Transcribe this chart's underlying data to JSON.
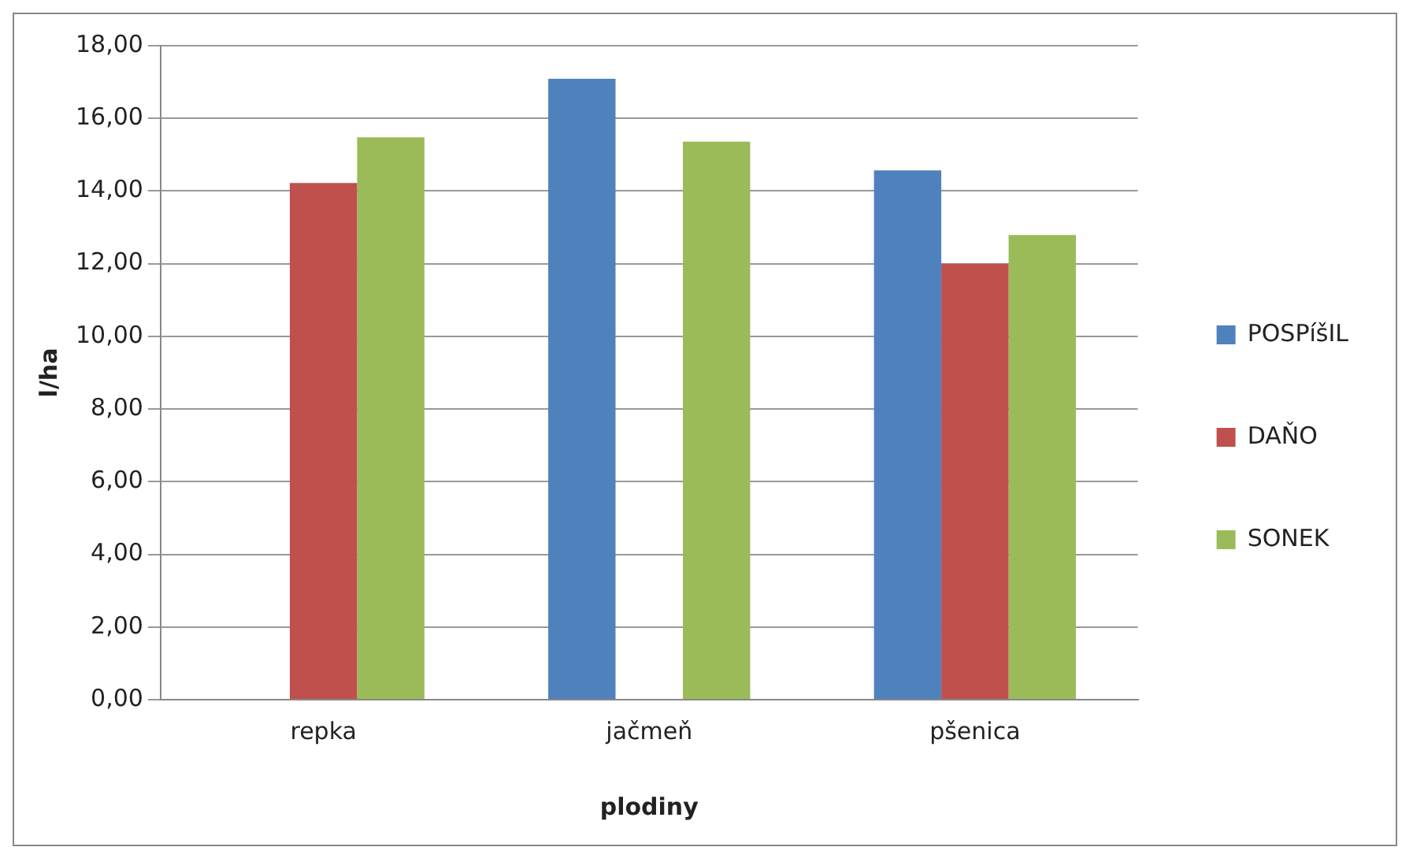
{
  "chart_data": {
    "type": "bar",
    "xlabel": "plodiny",
    "ylabel": "l/ha",
    "categories": [
      "repka",
      "jačmeň",
      "pšenica"
    ],
    "series": [
      {
        "name": "POSPíšIL",
        "color": "#4f81bd",
        "values": [
          null,
          17.09,
          14.57
        ]
      },
      {
        "name": "DAŇO",
        "color": "#c0504d",
        "values": [
          14.22,
          null,
          12.0
        ]
      },
      {
        "name": "SONEK",
        "color": "#9bbb59",
        "values": [
          15.48,
          15.36,
          12.79
        ]
      }
    ],
    "ylim": [
      0,
      18
    ],
    "yticks": [
      {
        "value": 0,
        "label": "0,00"
      },
      {
        "value": 2,
        "label": "2,00"
      },
      {
        "value": 4,
        "label": "4,00"
      },
      {
        "value": 6,
        "label": "6,00"
      },
      {
        "value": 8,
        "label": "8,00"
      },
      {
        "value": 10,
        "label": "10,00"
      },
      {
        "value": 12,
        "label": "12,00"
      },
      {
        "value": 14,
        "label": "14,00"
      },
      {
        "value": 16,
        "label": "16,00"
      },
      {
        "value": 18,
        "label": "18,00"
      }
    ],
    "grid": "y",
    "legend": "right"
  }
}
